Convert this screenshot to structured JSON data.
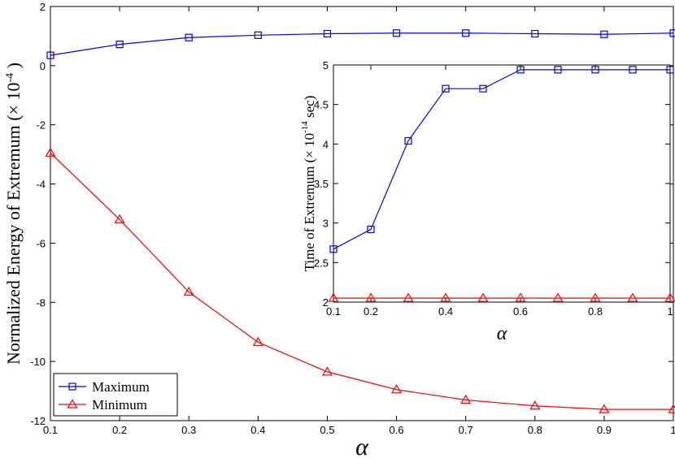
{
  "chart_data": [
    {
      "type": "line",
      "xlabel": "α",
      "ylabel": "Normalized Energy of Extremum (× 10",
      "ylabel_exp": "-4",
      "ylabel_close": ")",
      "x": [
        0.1,
        0.2,
        0.3,
        0.4,
        0.5,
        0.6,
        0.7,
        0.8,
        0.9,
        1.0
      ],
      "xlim": [
        0.1,
        1.0
      ],
      "ylim": [
        -12,
        2
      ],
      "xticks": [
        "0.1",
        "0.2",
        "0.3",
        "0.4",
        "0.5",
        "0.6",
        "0.7",
        "0.8",
        "0.9",
        "1"
      ],
      "yticks": [
        "2",
        "0",
        "-2",
        "-4",
        "-6",
        "-8",
        "-10",
        "-12"
      ],
      "legend_position": "bottom-left",
      "series": [
        {
          "name": "Maximum",
          "color": "#0000ff",
          "marker": "square",
          "values": [
            0.35,
            0.72,
            0.95,
            1.03,
            1.08,
            1.1,
            1.1,
            1.08,
            1.06,
            1.1
          ]
        },
        {
          "name": "Minimum",
          "color": "#ff0000",
          "marker": "triangle",
          "values": [
            -2.95,
            -5.2,
            -7.65,
            -9.35,
            -10.35,
            -10.95,
            -11.3,
            -11.5,
            -11.62,
            -11.62
          ]
        }
      ]
    },
    {
      "type": "line",
      "inset": true,
      "xlabel": "α",
      "ylabel": "Time of Extremum (× 10",
      "ylabel_exp": "-14",
      "ylabel_close": "sec)",
      "x": [
        0.1,
        0.2,
        0.3,
        0.4,
        0.5,
        0.6,
        0.7,
        0.8,
        0.9,
        1.0
      ],
      "xlim": [
        0.1,
        1.0
      ],
      "ylim": [
        2,
        5
      ],
      "xticks": [
        "0.1",
        "0.2",
        "0.4",
        "0.6",
        "0.8",
        "1"
      ],
      "yticks": [
        "5",
        "4.5",
        "4",
        "3.5",
        "3",
        "2.5",
        "2"
      ],
      "series": [
        {
          "color": "#0000ff",
          "marker": "square",
          "values": [
            2.67,
            2.92,
            4.04,
            4.7,
            4.7,
            4.94,
            4.94,
            4.94,
            4.94,
            4.94
          ]
        },
        {
          "color": "#ff0000",
          "marker": "triangle",
          "values": [
            2.05,
            2.05,
            2.05,
            2.05,
            2.05,
            2.05,
            2.05,
            2.05,
            2.05,
            2.05
          ]
        }
      ]
    }
  ]
}
